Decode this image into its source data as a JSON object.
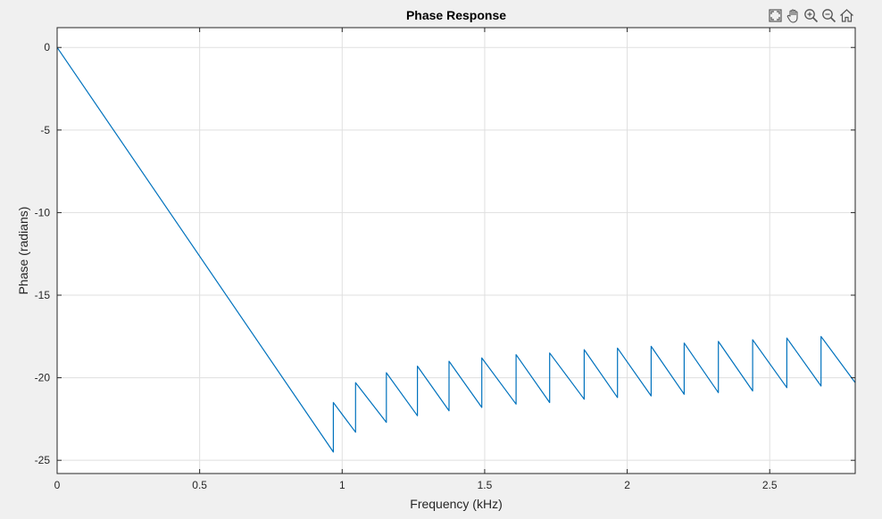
{
  "toolbar": {
    "buttons": [
      {
        "name": "restore-view-icon",
        "label": "Restore View"
      },
      {
        "name": "pan-hand-icon",
        "label": "Pan"
      },
      {
        "name": "zoom-in-icon",
        "label": "Zoom In"
      },
      {
        "name": "zoom-out-icon",
        "label": "Zoom Out"
      },
      {
        "name": "home-icon",
        "label": "Home"
      }
    ]
  },
  "colors": {
    "background": "#f0f0f0",
    "axes": "#ffffff",
    "line": "#0072bd",
    "grid": "#dfdfdf",
    "text": "#262626"
  },
  "chart_data": {
    "type": "line",
    "title": "Phase Response",
    "xlabel": "Frequency (kHz)",
    "ylabel": "Phase (radians)",
    "xlim": [
      0,
      2.8
    ],
    "ylim": [
      -25.8,
      1.2
    ],
    "xticks": [
      0,
      0.5,
      1,
      1.5,
      2,
      2.5
    ],
    "xtick_labels": [
      "0",
      "0.5",
      "1",
      "1.5",
      "2",
      "2.5"
    ],
    "yticks": [
      0,
      -5,
      -10,
      -15,
      -20,
      -25
    ],
    "ytick_labels": [
      "0",
      "-5",
      "-10",
      "-15",
      "-20",
      "-25"
    ],
    "grid": true,
    "series": [
      {
        "x": [
          0,
          0.969,
          0.969,
          1.047,
          1.047,
          1.155,
          1.155,
          1.264,
          1.264,
          1.375,
          1.375,
          1.49,
          1.49,
          1.61,
          1.61,
          1.728,
          1.728,
          1.849,
          1.849,
          1.966,
          1.966,
          2.084,
          2.084,
          2.2,
          2.2,
          2.32,
          2.32,
          2.44,
          2.44,
          2.56,
          2.56,
          2.68,
          2.68,
          2.8
        ],
        "y": [
          0,
          -24.5,
          -21.5,
          -23.3,
          -20.3,
          -22.7,
          -19.7,
          -22.3,
          -19.3,
          -22.0,
          -19.0,
          -21.8,
          -18.8,
          -21.6,
          -18.6,
          -21.5,
          -18.5,
          -21.3,
          -18.3,
          -21.2,
          -18.2,
          -21.1,
          -18.1,
          -21.0,
          -17.9,
          -20.9,
          -17.8,
          -20.8,
          -17.7,
          -20.6,
          -17.6,
          -20.5,
          -17.5,
          -20.3
        ]
      }
    ]
  }
}
